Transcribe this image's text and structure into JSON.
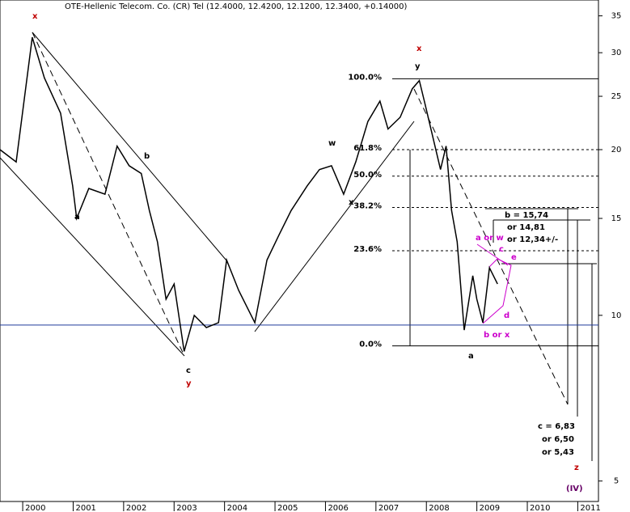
{
  "chart_data": {
    "type": "line",
    "title": "OTE-Hellenic Telecom. Co. (CR) Tel (12.4000, 12.4200, 12.1200, 12.3400, +0.14000)",
    "log": true,
    "xlim": [
      1999.55,
      2011.41
    ],
    "xticks": [
      2000,
      2001,
      2002,
      2003,
      2004,
      2005,
      2006,
      2007,
      2008,
      2009,
      2010,
      2011
    ],
    "ylim": [
      4.59,
      37.4
    ],
    "yticks": [
      5,
      10,
      15,
      20,
      25,
      30,
      35
    ],
    "series": [
      {
        "color": "#000000",
        "x": [
          1999.55,
          1999.87,
          2000.19,
          2000.43,
          2000.75,
          2000.99,
          2001.07,
          2001.31,
          2001.63,
          2001.87,
          2002.11,
          2002.35,
          2002.51,
          2002.67,
          2002.84,
          2003.0,
          2003.2,
          2003.4,
          2003.64,
          2003.88,
          2004.04,
          2004.28,
          2004.6,
          2004.84,
          2005.08,
          2005.32,
          2005.64,
          2005.88,
          2006.12,
          2006.36,
          2006.6,
          2006.84,
          2007.08,
          2007.24,
          2007.48,
          2007.72,
          2007.86,
          2007.96,
          2008.28,
          2008.39,
          2008.5,
          2008.61,
          2008.75,
          2008.92,
          2009.0,
          2009.12,
          2009.25,
          2009.41
        ],
        "values": [
          20,
          19,
          32,
          27,
          23.3,
          17.2,
          15,
          17,
          16.6,
          20.3,
          18.7,
          18.1,
          15.5,
          13.6,
          10.7,
          11.4,
          8.6,
          10,
          9.5,
          9.7,
          12.6,
          11.1,
          9.7,
          12.6,
          14,
          15.5,
          17.2,
          18.4,
          18.7,
          16.6,
          19,
          22.5,
          24.5,
          21.8,
          22.9,
          25.8,
          26.7,
          24.5,
          18.4,
          20.3,
          15.5,
          13.6,
          9.4,
          11.8,
          10.7,
          9.7,
          12.2,
          11.4
        ]
      }
    ],
    "fib_levels": [
      {
        "label": "100.0%",
        "value": 26.9
      },
      {
        "label": "61.8%",
        "value": 20
      },
      {
        "label": "50.0%",
        "value": 17.9
      },
      {
        "label": "38.2%",
        "value": 15.7
      },
      {
        "label": "23.6%",
        "value": 13.1
      },
      {
        "label": "0.0%",
        "value": 8.8
      }
    ],
    "reference_line": {
      "value": 9.6,
      "color": "#1f3a9a"
    },
    "annotations": [
      {
        "text": "x",
        "color": "#c00000"
      },
      {
        "text": "b",
        "color": "#000000"
      },
      {
        "text": "a",
        "color": "#000000"
      },
      {
        "text": "c",
        "color": "#000000"
      },
      {
        "text": "y",
        "color": "#c00000"
      },
      {
        "text": "x",
        "color": "#c00000"
      },
      {
        "text": "y",
        "color": "#000000"
      },
      {
        "text": "w",
        "color": "#000000"
      },
      {
        "text": "x",
        "color": "#000000"
      },
      {
        "text": "a",
        "color": "#000000"
      },
      {
        "text": "a or w",
        "color": "#cc00cc"
      },
      {
        "text": "c",
        "color": "#cc00cc"
      },
      {
        "text": "e",
        "color": "#cc00cc"
      },
      {
        "text": "d",
        "color": "#cc00cc"
      },
      {
        "text": "b or x",
        "color": "#cc00cc"
      },
      {
        "text": "b = 15,74",
        "color": "#000000"
      },
      {
        "text": "or 14,81",
        "color": "#000000"
      },
      {
        "text": "or 12,34+/-",
        "color": "#000000"
      },
      {
        "text": "c = 6,83",
        "color": "#000000"
      },
      {
        "text": "or 6,50",
        "color": "#000000"
      },
      {
        "text": "or 5,43",
        "color": "#000000"
      },
      {
        "text": "z",
        "color": "#c00000"
      },
      {
        "text": "(IV)",
        "color": "#660066"
      }
    ]
  }
}
